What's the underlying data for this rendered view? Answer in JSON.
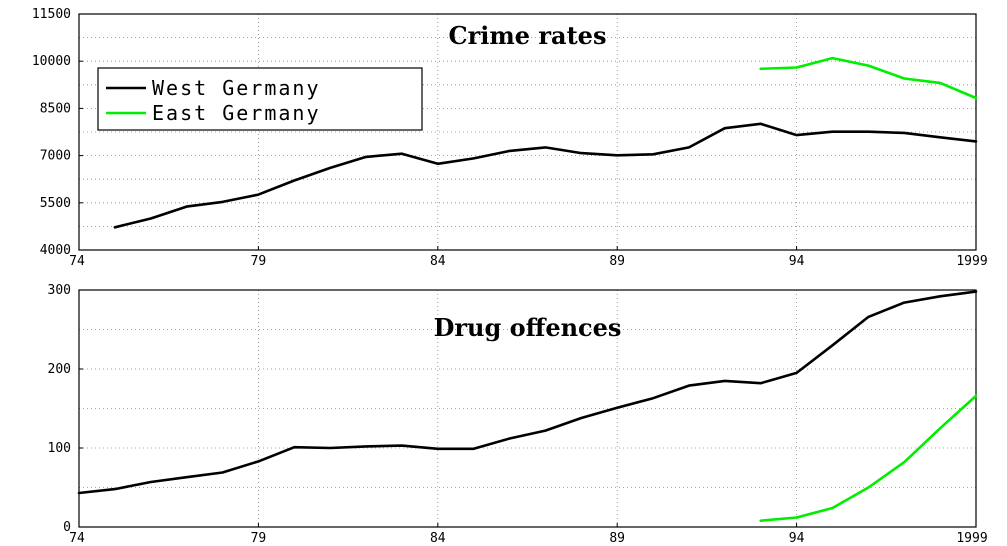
{
  "colors": {
    "west": "#000000",
    "east": "#00ee00"
  },
  "chart_data": [
    {
      "type": "line",
      "title": "Crime rates",
      "xlabel": "",
      "ylabel": "",
      "xlim": [
        1974,
        1999
      ],
      "ylim": [
        4000,
        11500
      ],
      "grid": true,
      "legend_position": "upper-left",
      "x_ticks": [
        1974,
        1979,
        1984,
        1989,
        1994,
        1999
      ],
      "x_tick_labels": [
        "74",
        "79",
        "84",
        "89",
        "94",
        "1999"
      ],
      "y_ticks": [
        4000,
        5500,
        7000,
        8500,
        10000,
        11500
      ],
      "y_tick_labels": [
        "4000",
        "5500",
        "7000",
        "8500",
        "10000",
        "11500"
      ],
      "series": [
        {
          "name": "West Germany",
          "color": "#000000",
          "x": [
            1975,
            1976,
            1977,
            1978,
            1979,
            1980,
            1981,
            1982,
            1983,
            1984,
            1985,
            1986,
            1987,
            1988,
            1989,
            1990,
            1991,
            1992,
            1993,
            1994,
            1995,
            1996,
            1997,
            1998,
            1999
          ],
          "y": [
            4720,
            5000,
            5380,
            5530,
            5760,
            6210,
            6610,
            6960,
            7060,
            6740,
            6910,
            7150,
            7260,
            7080,
            7010,
            7040,
            7260,
            7870,
            8010,
            7650,
            7760,
            7760,
            7720,
            7580,
            7450
          ]
        },
        {
          "name": "East Germany",
          "color": "#00ee00",
          "x": [
            1993,
            1994,
            1995,
            1996,
            1997,
            1998,
            1999
          ],
          "y": [
            9760,
            9800,
            10100,
            9860,
            9450,
            9310,
            8830
          ]
        }
      ]
    },
    {
      "type": "line",
      "title": "Drug offences",
      "xlabel": "",
      "ylabel": "",
      "xlim": [
        1974,
        1999
      ],
      "ylim": [
        0,
        300
      ],
      "grid": true,
      "x_ticks": [
        1974,
        1979,
        1984,
        1989,
        1994,
        1999
      ],
      "x_tick_labels": [
        "74",
        "79",
        "84",
        "89",
        "94",
        "1999"
      ],
      "y_ticks": [
        0,
        100,
        200,
        300
      ],
      "y_tick_labels": [
        "0",
        "100",
        "200",
        "300"
      ],
      "series": [
        {
          "name": "West Germany",
          "color": "#000000",
          "x": [
            1974,
            1975,
            1976,
            1977,
            1978,
            1979,
            1980,
            1981,
            1982,
            1983,
            1984,
            1985,
            1986,
            1987,
            1988,
            1989,
            1990,
            1991,
            1992,
            1993,
            1994,
            1995,
            1996,
            1997,
            1998,
            1999
          ],
          "y": [
            43,
            48,
            57,
            63,
            69,
            83,
            101,
            100,
            102,
            103,
            99,
            99,
            112,
            122,
            138,
            151,
            163,
            179,
            185,
            182,
            195,
            230,
            266,
            284,
            292,
            298
          ]
        },
        {
          "name": "East Germany",
          "color": "#00ee00",
          "x": [
            1993,
            1994,
            1995,
            1996,
            1997,
            1998,
            1999
          ],
          "y": [
            8,
            12,
            24,
            50,
            82,
            125,
            166
          ]
        }
      ]
    }
  ]
}
